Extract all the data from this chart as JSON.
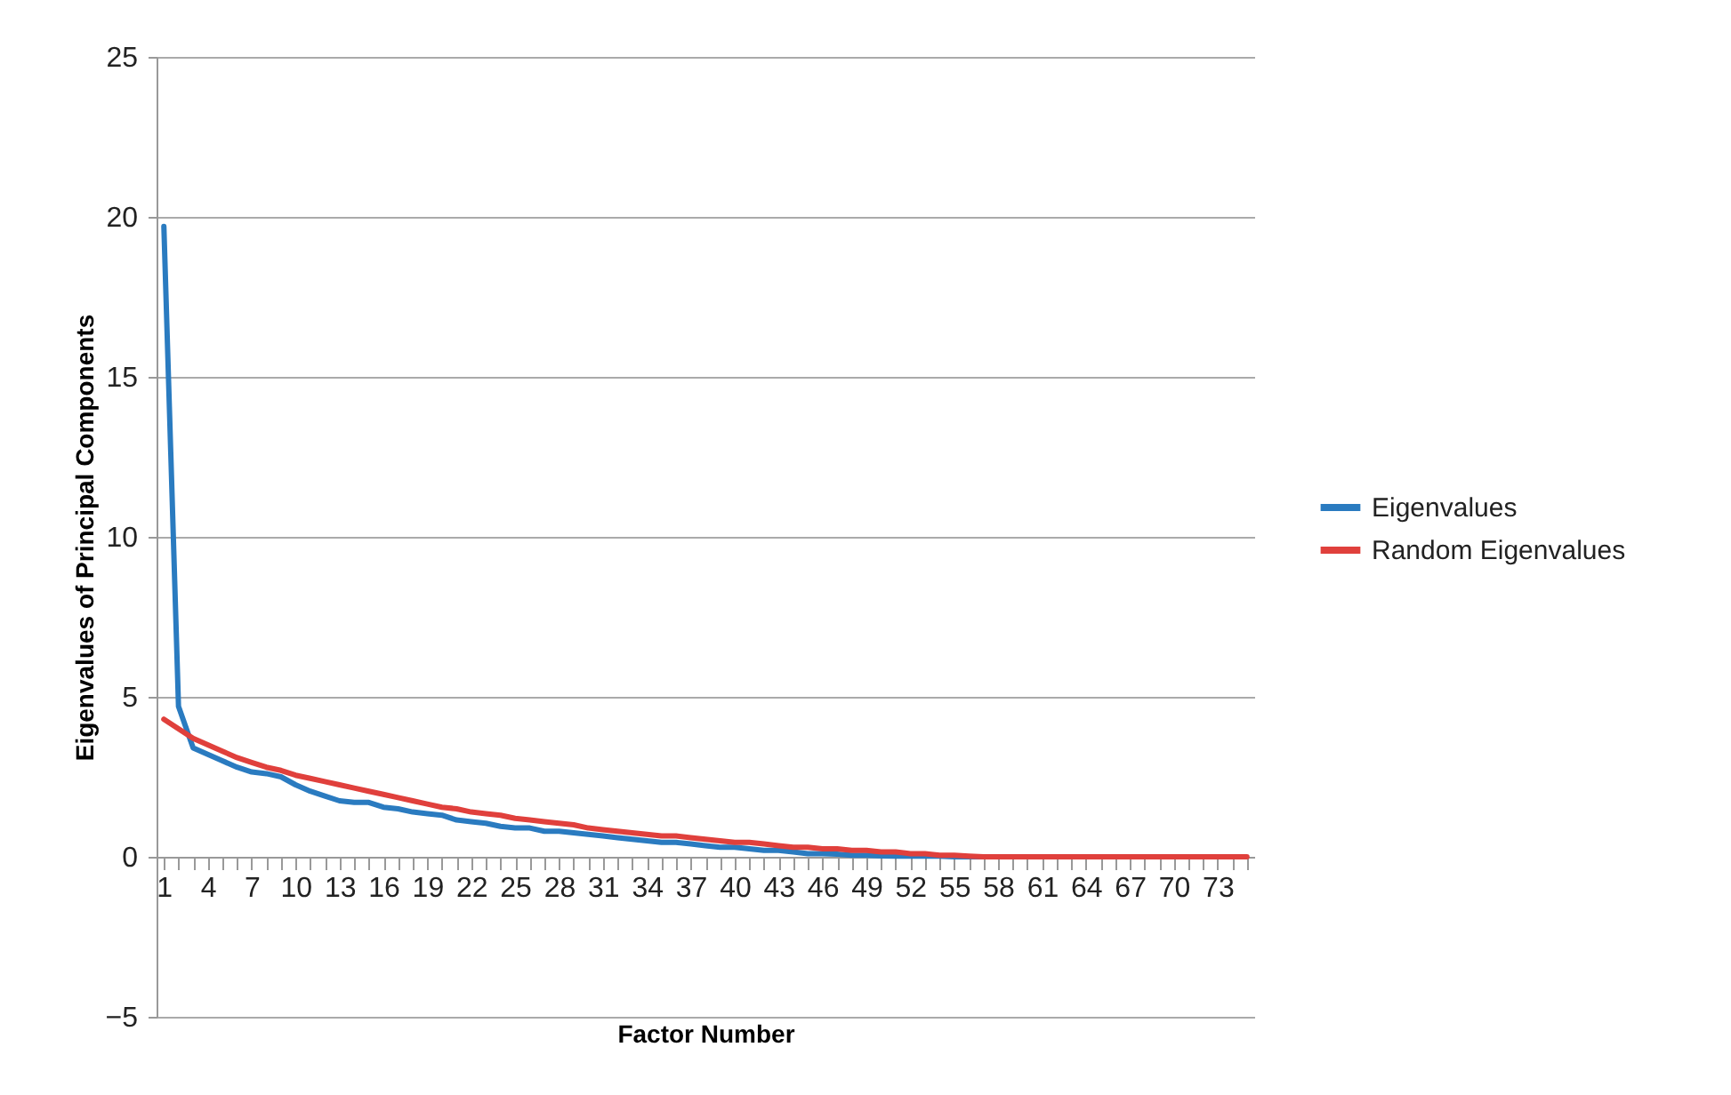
{
  "chart_data": {
    "type": "line",
    "xlabel": "Factor Number",
    "ylabel": "Eigenvalues of Principal Components",
    "categories": [
      "1",
      null,
      null,
      "4",
      null,
      null,
      "7",
      null,
      null,
      "10",
      null,
      null,
      "13",
      null,
      null,
      "16",
      null,
      null,
      "19",
      null,
      null,
      "22",
      null,
      null,
      "25",
      null,
      null,
      "28",
      null,
      null,
      "31",
      null,
      null,
      "34",
      null,
      null,
      "37",
      null,
      null,
      "40",
      null,
      null,
      "43",
      null,
      null,
      "46",
      null,
      null,
      "49",
      null,
      null,
      "52",
      null,
      null,
      "55",
      null,
      null,
      "58",
      null,
      null,
      "61",
      null,
      null,
      "64",
      null,
      null,
      "67",
      null,
      null,
      "70",
      null,
      null,
      "73",
      null,
      null
    ],
    "series": [
      {
        "name": "Eigenvalues",
        "color": "#2a7bc0",
        "values": [
          19.7,
          4.7,
          3.4,
          3.2,
          3.0,
          2.8,
          2.65,
          2.6,
          2.5,
          2.25,
          2.05,
          1.9,
          1.75,
          1.7,
          1.7,
          1.55,
          1.5,
          1.4,
          1.35,
          1.3,
          1.15,
          1.1,
          1.05,
          0.95,
          0.9,
          0.9,
          0.8,
          0.8,
          0.75,
          0.7,
          0.65,
          0.6,
          0.55,
          0.5,
          0.45,
          0.45,
          0.4,
          0.35,
          0.3,
          0.3,
          0.25,
          0.2,
          0.2,
          0.15,
          0.1,
          0.1,
          0.08,
          0.05,
          0.05,
          0.03,
          0.02,
          0.02,
          0.02,
          0.02,
          0,
          0,
          0,
          0,
          null,
          null,
          null,
          null,
          null,
          null,
          null,
          null,
          null,
          null,
          null,
          null,
          null,
          null,
          null,
          null,
          null
        ]
      },
      {
        "name": "Random Eigenvalues",
        "color": "#e0403c",
        "values": [
          4.3,
          4.0,
          3.7,
          3.5,
          3.3,
          3.1,
          2.95,
          2.8,
          2.7,
          2.55,
          2.45,
          2.35,
          2.25,
          2.15,
          2.05,
          1.95,
          1.85,
          1.75,
          1.65,
          1.55,
          1.5,
          1.4,
          1.35,
          1.3,
          1.2,
          1.15,
          1.1,
          1.05,
          1.0,
          0.9,
          0.85,
          0.8,
          0.75,
          0.7,
          0.65,
          0.65,
          0.6,
          0.55,
          0.5,
          0.45,
          0.45,
          0.4,
          0.35,
          0.3,
          0.3,
          0.25,
          0.25,
          0.2,
          0.2,
          0.15,
          0.15,
          0.1,
          0.1,
          0.05,
          0.05,
          0.02,
          0,
          0,
          0,
          0,
          0,
          0,
          0,
          0,
          0,
          0,
          0,
          0,
          0,
          0,
          0,
          0,
          0,
          0,
          0
        ]
      }
    ],
    "ylim": [
      -5,
      25
    ],
    "yticks": [
      -5,
      0,
      5,
      10,
      15,
      20,
      25
    ],
    "grid": "y",
    "legend": "right",
    "marker": "none",
    "line_style": "solid"
  }
}
